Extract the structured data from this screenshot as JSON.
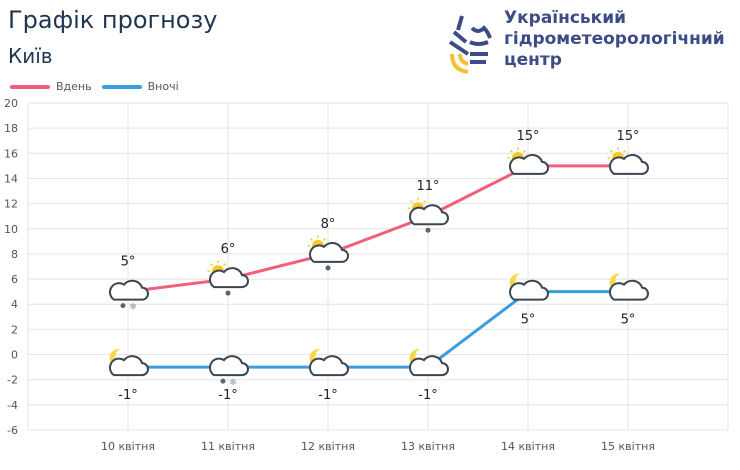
{
  "header": {
    "title": "Графік прогнозу",
    "city": "Київ"
  },
  "org": {
    "line1": "Український",
    "line2": "гідрометеорологічний",
    "line3": "центр"
  },
  "chart_data": {
    "type": "line",
    "categories": [
      "10 квітня",
      "11 квітня",
      "12 квітня",
      "13 квітня",
      "14 квітня",
      "15 квітня"
    ],
    "ylim": [
      -6,
      20
    ],
    "yticks": [
      20,
      18,
      16,
      14,
      12,
      10,
      8,
      6,
      4,
      2,
      0,
      -2,
      -4,
      -6
    ],
    "grid": true,
    "legend": "top-left",
    "series": [
      {
        "name": "Вдень",
        "color": "#f0607a",
        "values": [
          5,
          6,
          8,
          11,
          15,
          15
        ],
        "labels": [
          "5°",
          "6°",
          "8°",
          "11°",
          "15°",
          "15°"
        ],
        "icons": [
          "cloud-rain-snow",
          "sun-cloud-rain",
          "sun-cloud-rain",
          "sun-cloud-rain",
          "sun-cloud",
          "sun-cloud"
        ]
      },
      {
        "name": "Вночі",
        "color": "#3a9ee0",
        "values": [
          -1,
          -1,
          -1,
          -1,
          5,
          5
        ],
        "labels": [
          "-1°",
          "-1°",
          "-1°",
          "-1°",
          "5°",
          "5°"
        ],
        "icons": [
          "moon-cloud",
          "cloud-rain-snow",
          "moon-cloud",
          "moon-cloud",
          "moon-cloud",
          "moon-cloud"
        ]
      }
    ]
  }
}
